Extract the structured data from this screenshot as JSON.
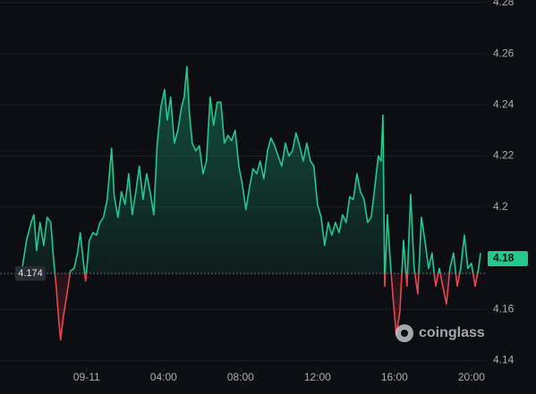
{
  "chart_data": {
    "type": "baseline-line",
    "x": [
      -3.35,
      -3.12,
      -2.88,
      -2.74,
      -2.6,
      -2.42,
      -2.23,
      -2.05,
      -1.86,
      -1.72,
      -1.58,
      -1.44,
      -1.35,
      -1.21,
      -1.02,
      -0.84,
      -0.65,
      -0.47,
      -0.33,
      -0.19,
      -0.05,
      0.14,
      0.33,
      0.51,
      0.7,
      0.88,
      1.07,
      1.21,
      1.3,
      1.44,
      1.63,
      1.81,
      2.0,
      2.19,
      2.37,
      2.56,
      2.74,
      2.93,
      3.12,
      3.3,
      3.49,
      3.67,
      3.86,
      4.05,
      4.19,
      4.37,
      4.56,
      4.74,
      4.93,
      5.07,
      5.21,
      5.35,
      5.49,
      5.67,
      5.86,
      6.05,
      6.23,
      6.42,
      6.6,
      6.79,
      6.98,
      7.16,
      7.35,
      7.53,
      7.72,
      7.91,
      8.09,
      8.28,
      8.47,
      8.65,
      8.84,
      9.02,
      9.21,
      9.4,
      9.58,
      9.77,
      9.95,
      10.14,
      10.33,
      10.51,
      10.7,
      10.88,
      11.07,
      11.26,
      11.44,
      11.63,
      11.81,
      12.0,
      12.19,
      12.37,
      12.56,
      12.74,
      12.93,
      13.12,
      13.3,
      13.49,
      13.67,
      13.86,
      14.05,
      14.23,
      14.42,
      14.6,
      14.79,
      14.98,
      15.16,
      15.3,
      15.4,
      15.49,
      15.63,
      15.77,
      15.91,
      16.09,
      16.28,
      16.47,
      16.65,
      16.84,
      17.02,
      17.21,
      17.4,
      17.58,
      17.77,
      17.95,
      18.14,
      18.33,
      18.51,
      18.7,
      18.88,
      19.07,
      19.26,
      19.44,
      19.63,
      19.81,
      20.0,
      20.19,
      20.37,
      20.47
    ],
    "values": [
      4.176,
      4.187,
      4.194,
      4.197,
      4.183,
      4.194,
      4.185,
      4.196,
      4.194,
      4.18,
      4.169,
      4.155,
      4.148,
      4.157,
      4.166,
      4.175,
      4.176,
      4.182,
      4.19,
      4.18,
      4.171,
      4.187,
      4.19,
      4.189,
      4.194,
      4.196,
      4.203,
      4.215,
      4.223,
      4.204,
      4.196,
      4.206,
      4.201,
      4.213,
      4.197,
      4.206,
      4.216,
      4.203,
      4.213,
      4.206,
      4.197,
      4.225,
      4.239,
      4.246,
      4.234,
      4.243,
      4.225,
      4.23,
      4.239,
      4.243,
      4.255,
      4.236,
      4.225,
      4.222,
      4.224,
      4.213,
      4.218,
      4.243,
      4.232,
      4.241,
      4.241,
      4.225,
      4.228,
      4.226,
      4.23,
      4.216,
      4.209,
      4.199,
      4.208,
      4.215,
      4.213,
      4.218,
      4.211,
      4.222,
      4.227,
      4.224,
      4.22,
      4.216,
      4.225,
      4.22,
      4.222,
      4.229,
      4.224,
      4.218,
      4.225,
      4.218,
      4.216,
      4.201,
      4.196,
      4.185,
      4.194,
      4.189,
      4.194,
      4.19,
      4.197,
      4.194,
      4.204,
      4.203,
      4.213,
      4.206,
      4.203,
      4.194,
      4.196,
      4.208,
      4.22,
      4.218,
      4.236,
      4.169,
      4.197,
      4.18,
      4.166,
      4.15,
      4.159,
      4.187,
      4.169,
      4.205,
      4.176,
      4.166,
      4.196,
      4.187,
      4.176,
      4.182,
      4.169,
      4.176,
      4.169,
      4.162,
      4.176,
      4.182,
      4.169,
      4.176,
      4.189,
      4.176,
      4.178,
      4.169,
      4.176,
      4.182
    ],
    "baseline": {
      "value": 4.174,
      "label": "4.174"
    },
    "current_price": 4.18,
    "up_color": "#22c98d",
    "down_color": "#e8454f",
    "xlim": [
      -4.5,
      20.75
    ],
    "xticks": [
      {
        "value": 0,
        "label": "09-11"
      },
      {
        "value": 4,
        "label": "04:00"
      },
      {
        "value": 8,
        "label": "08:00"
      },
      {
        "value": 12,
        "label": "12:00"
      },
      {
        "value": 16,
        "label": "16:00"
      },
      {
        "value": 20,
        "label": "20:00"
      }
    ],
    "ylim": [
      4.137,
      4.281
    ],
    "yticks": [
      4.14,
      4.16,
      4.2,
      4.22,
      4.24,
      4.26,
      4.28
    ],
    "grid": true,
    "watermark": "coinglass"
  }
}
